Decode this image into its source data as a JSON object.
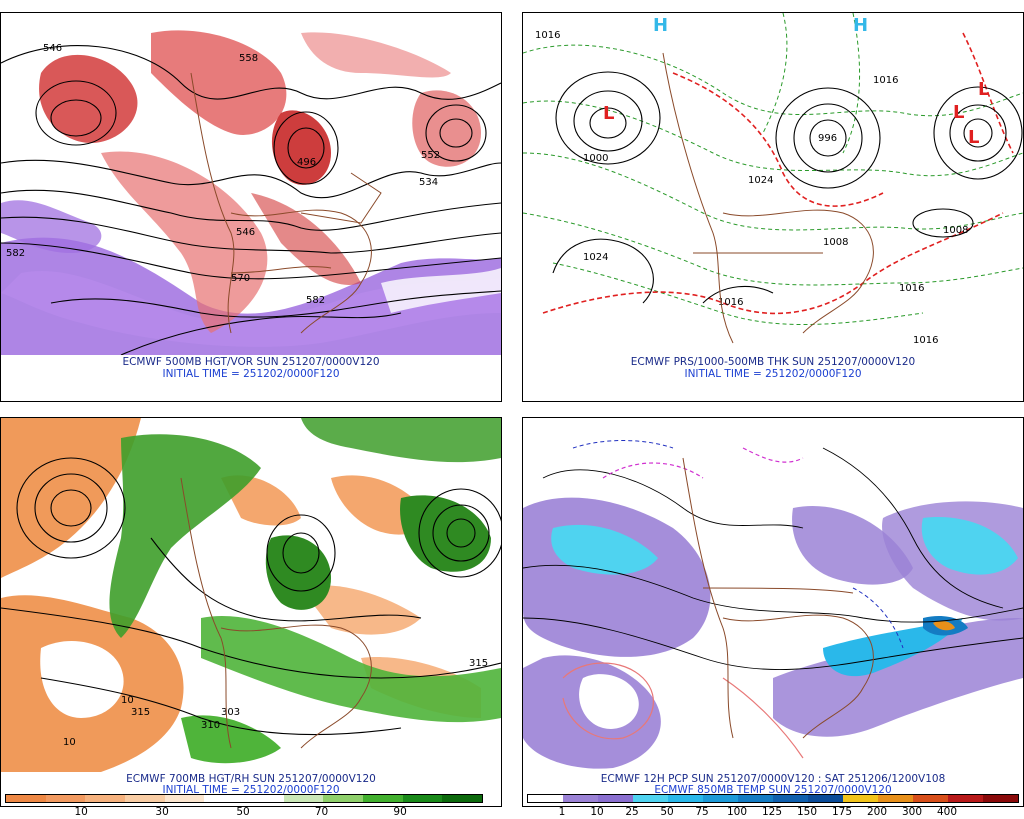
{
  "panels": [
    {
      "caption": "ECMWF 500MB HGT/VOR SUN 251207/0000V120",
      "initial": "INITIAL TIME = 251202/0000F120",
      "contour_labels": [
        "546",
        "558",
        "552",
        "496",
        "534",
        "570",
        "582",
        "582",
        "546"
      ]
    },
    {
      "caption": "ECMWF PRS/1000-500MB THK SUN 251207/0000V120",
      "initial": "INITIAL TIME = 251202/0000F120",
      "contour_labels": [
        "1016",
        "1024",
        "1016",
        "1016",
        "1008",
        "1000",
        "1024",
        "996",
        "1016",
        "1008",
        "1016"
      ],
      "symbols": [
        "H",
        "H",
        "L",
        "L",
        "L",
        "L"
      ]
    },
    {
      "caption": "ECMWF 700MB HGT/RH SUN 251207/0000V120",
      "initial": "INITIAL TIME = 251202/0000F120",
      "colorbar_labels": [
        "10",
        "30",
        "50",
        "70",
        "90"
      ],
      "colorbar_colors": [
        "#ee8844",
        "#f29a60",
        "#f6b27e",
        "#f9cda4",
        "#fce6cf",
        "#ffffff",
        "#ffffff",
        "#cbe8b8",
        "#8fd06b",
        "#42b02e",
        "#1a8a1a",
        "#0d6a0d"
      ],
      "contour_labels": [
        "315",
        "303",
        "310",
        "315",
        "10",
        "10"
      ]
    },
    {
      "caption": "ECMWF 12H PCP SUN 251207/0000V120 : SAT 251206/1200V108",
      "initial": "ECMWF 850MB TEMP SUN 251207/0000V120",
      "colorbar_labels": [
        "1",
        "10",
        "25",
        "50",
        "75",
        "100",
        "125",
        "150",
        "175",
        "200",
        "300",
        "400"
      ],
      "colorbar_colors": [
        "#ffffff",
        "#9b82d6",
        "#8a6fd0",
        "#4fd3f0",
        "#2ab8ea",
        "#1d9ad8",
        "#147cc3",
        "#0f5fae",
        "#0a4b99",
        "#f2c41a",
        "#e8901a",
        "#d84f1a",
        "#b81a1a",
        "#8a0a0a"
      ]
    }
  ]
}
